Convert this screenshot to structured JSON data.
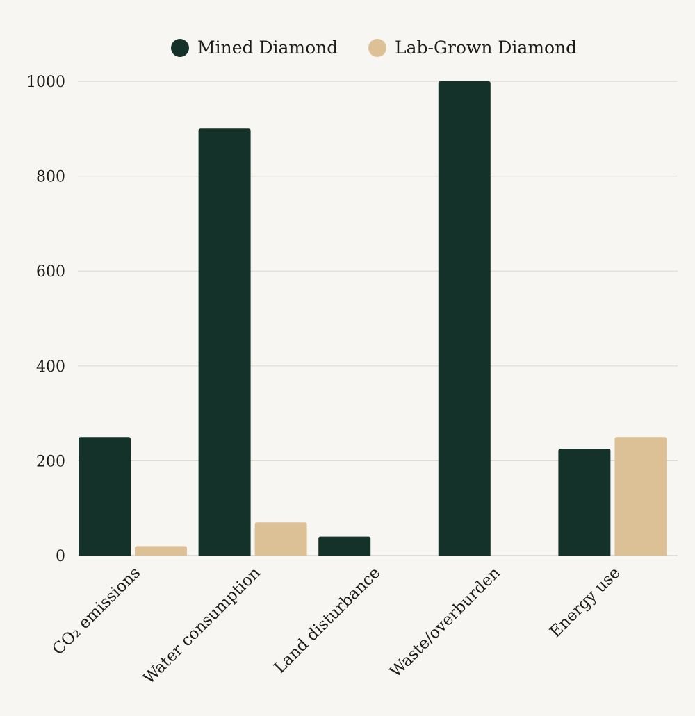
{
  "chart_data": {
    "type": "bar",
    "title": "",
    "xlabel": "",
    "ylabel": "",
    "categories": [
      "CO₂ emissions",
      "Water consumption",
      "Land disturbance",
      "Waste/overburden",
      "Energy use"
    ],
    "series": [
      {
        "name": "Mined Diamond",
        "color": "#143229",
        "values": [
          250,
          900,
          40,
          1000,
          225
        ]
      },
      {
        "name": "Lab-Grown Diamond",
        "color": "#dcc196",
        "values": [
          20,
          70,
          0,
          0,
          250
        ]
      }
    ],
    "ylim": [
      0,
      1000
    ],
    "yticks": [
      0,
      200,
      400,
      600,
      800,
      1000
    ],
    "grid": true,
    "legend_position": "top-center"
  }
}
